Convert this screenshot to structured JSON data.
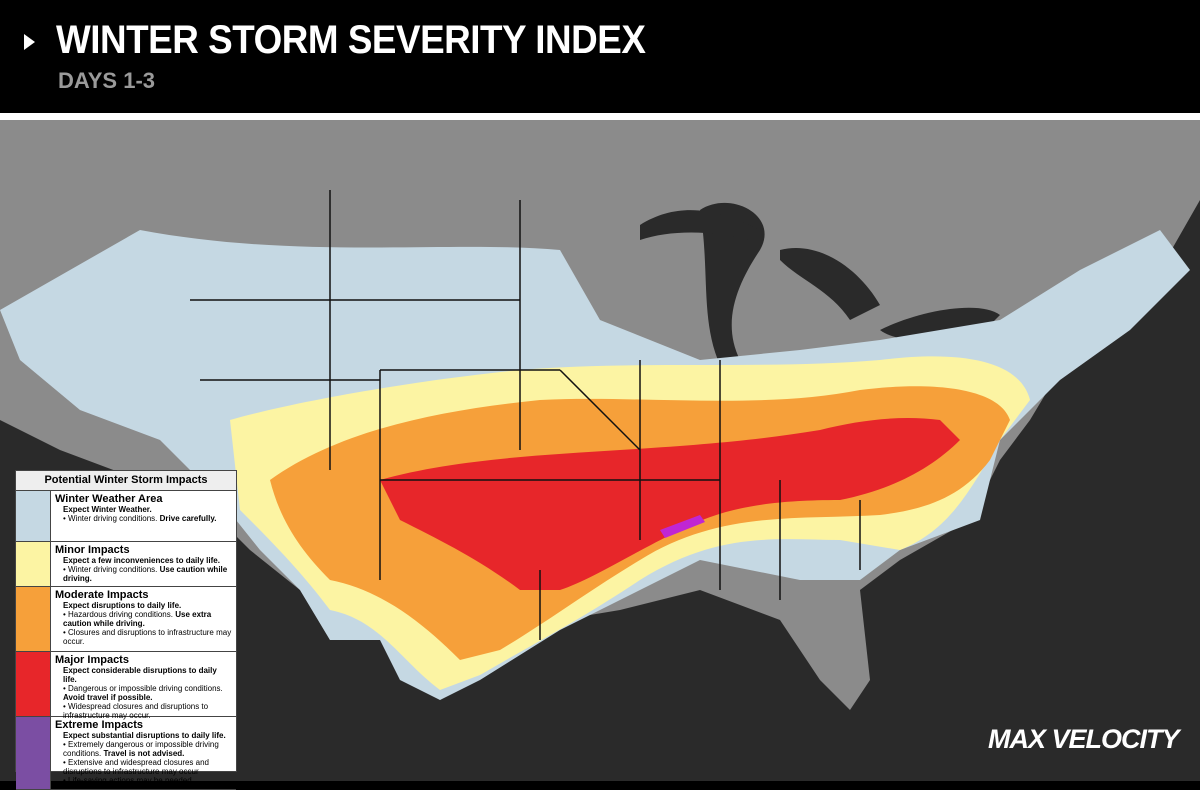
{
  "header": {
    "title": "WINTER STORM SEVERITY INDEX",
    "subtitle": "DAYS 1-3"
  },
  "legend": {
    "title": "Potential Winter Storm Impacts",
    "items": [
      {
        "name": "Winter Weather Area",
        "color": "#c5d8e3",
        "headline": "Expect Winter Weather.",
        "bullets": [
          {
            "text": "Winter driving conditions.",
            "bold": "Drive carefully."
          }
        ]
      },
      {
        "name": "Minor Impacts",
        "color": "#fcf4a3",
        "headline": "Expect a few inconveniences to daily life.",
        "bullets": [
          {
            "text": "Winter driving conditions.",
            "bold": "Use caution while driving."
          }
        ]
      },
      {
        "name": "Moderate Impacts",
        "color": "#f6a03a",
        "headline": "Expect disruptions to daily life.",
        "bullets": [
          {
            "text": "Hazardous driving conditions.",
            "bold": "Use extra caution while driving."
          },
          {
            "text": "Closures and disruptions to infrastructure may occur."
          }
        ]
      },
      {
        "name": "Major Impacts",
        "color": "#e7262a",
        "headline": "Expect considerable disruptions to daily life.",
        "bullets": [
          {
            "text": "Dangerous or impossible driving conditions.",
            "bold": "Avoid travel if possible."
          },
          {
            "text": "Widespread closures and disruptions to infrastructure may occur."
          }
        ]
      },
      {
        "name": "Extreme Impacts",
        "color": "#7b4ea3",
        "headline": "Expect substantial disruptions to daily life.",
        "bullets": [
          {
            "text": "Extremely dangerous or impossible driving conditions.",
            "bold": "Travel is not advised."
          },
          {
            "text": "Extensive and widespread closures and disruptions to infrastructure may occur"
          },
          {
            "text": "Life-saving actions may be needed."
          }
        ]
      }
    ]
  },
  "brand": "MAX VELOCITY"
}
